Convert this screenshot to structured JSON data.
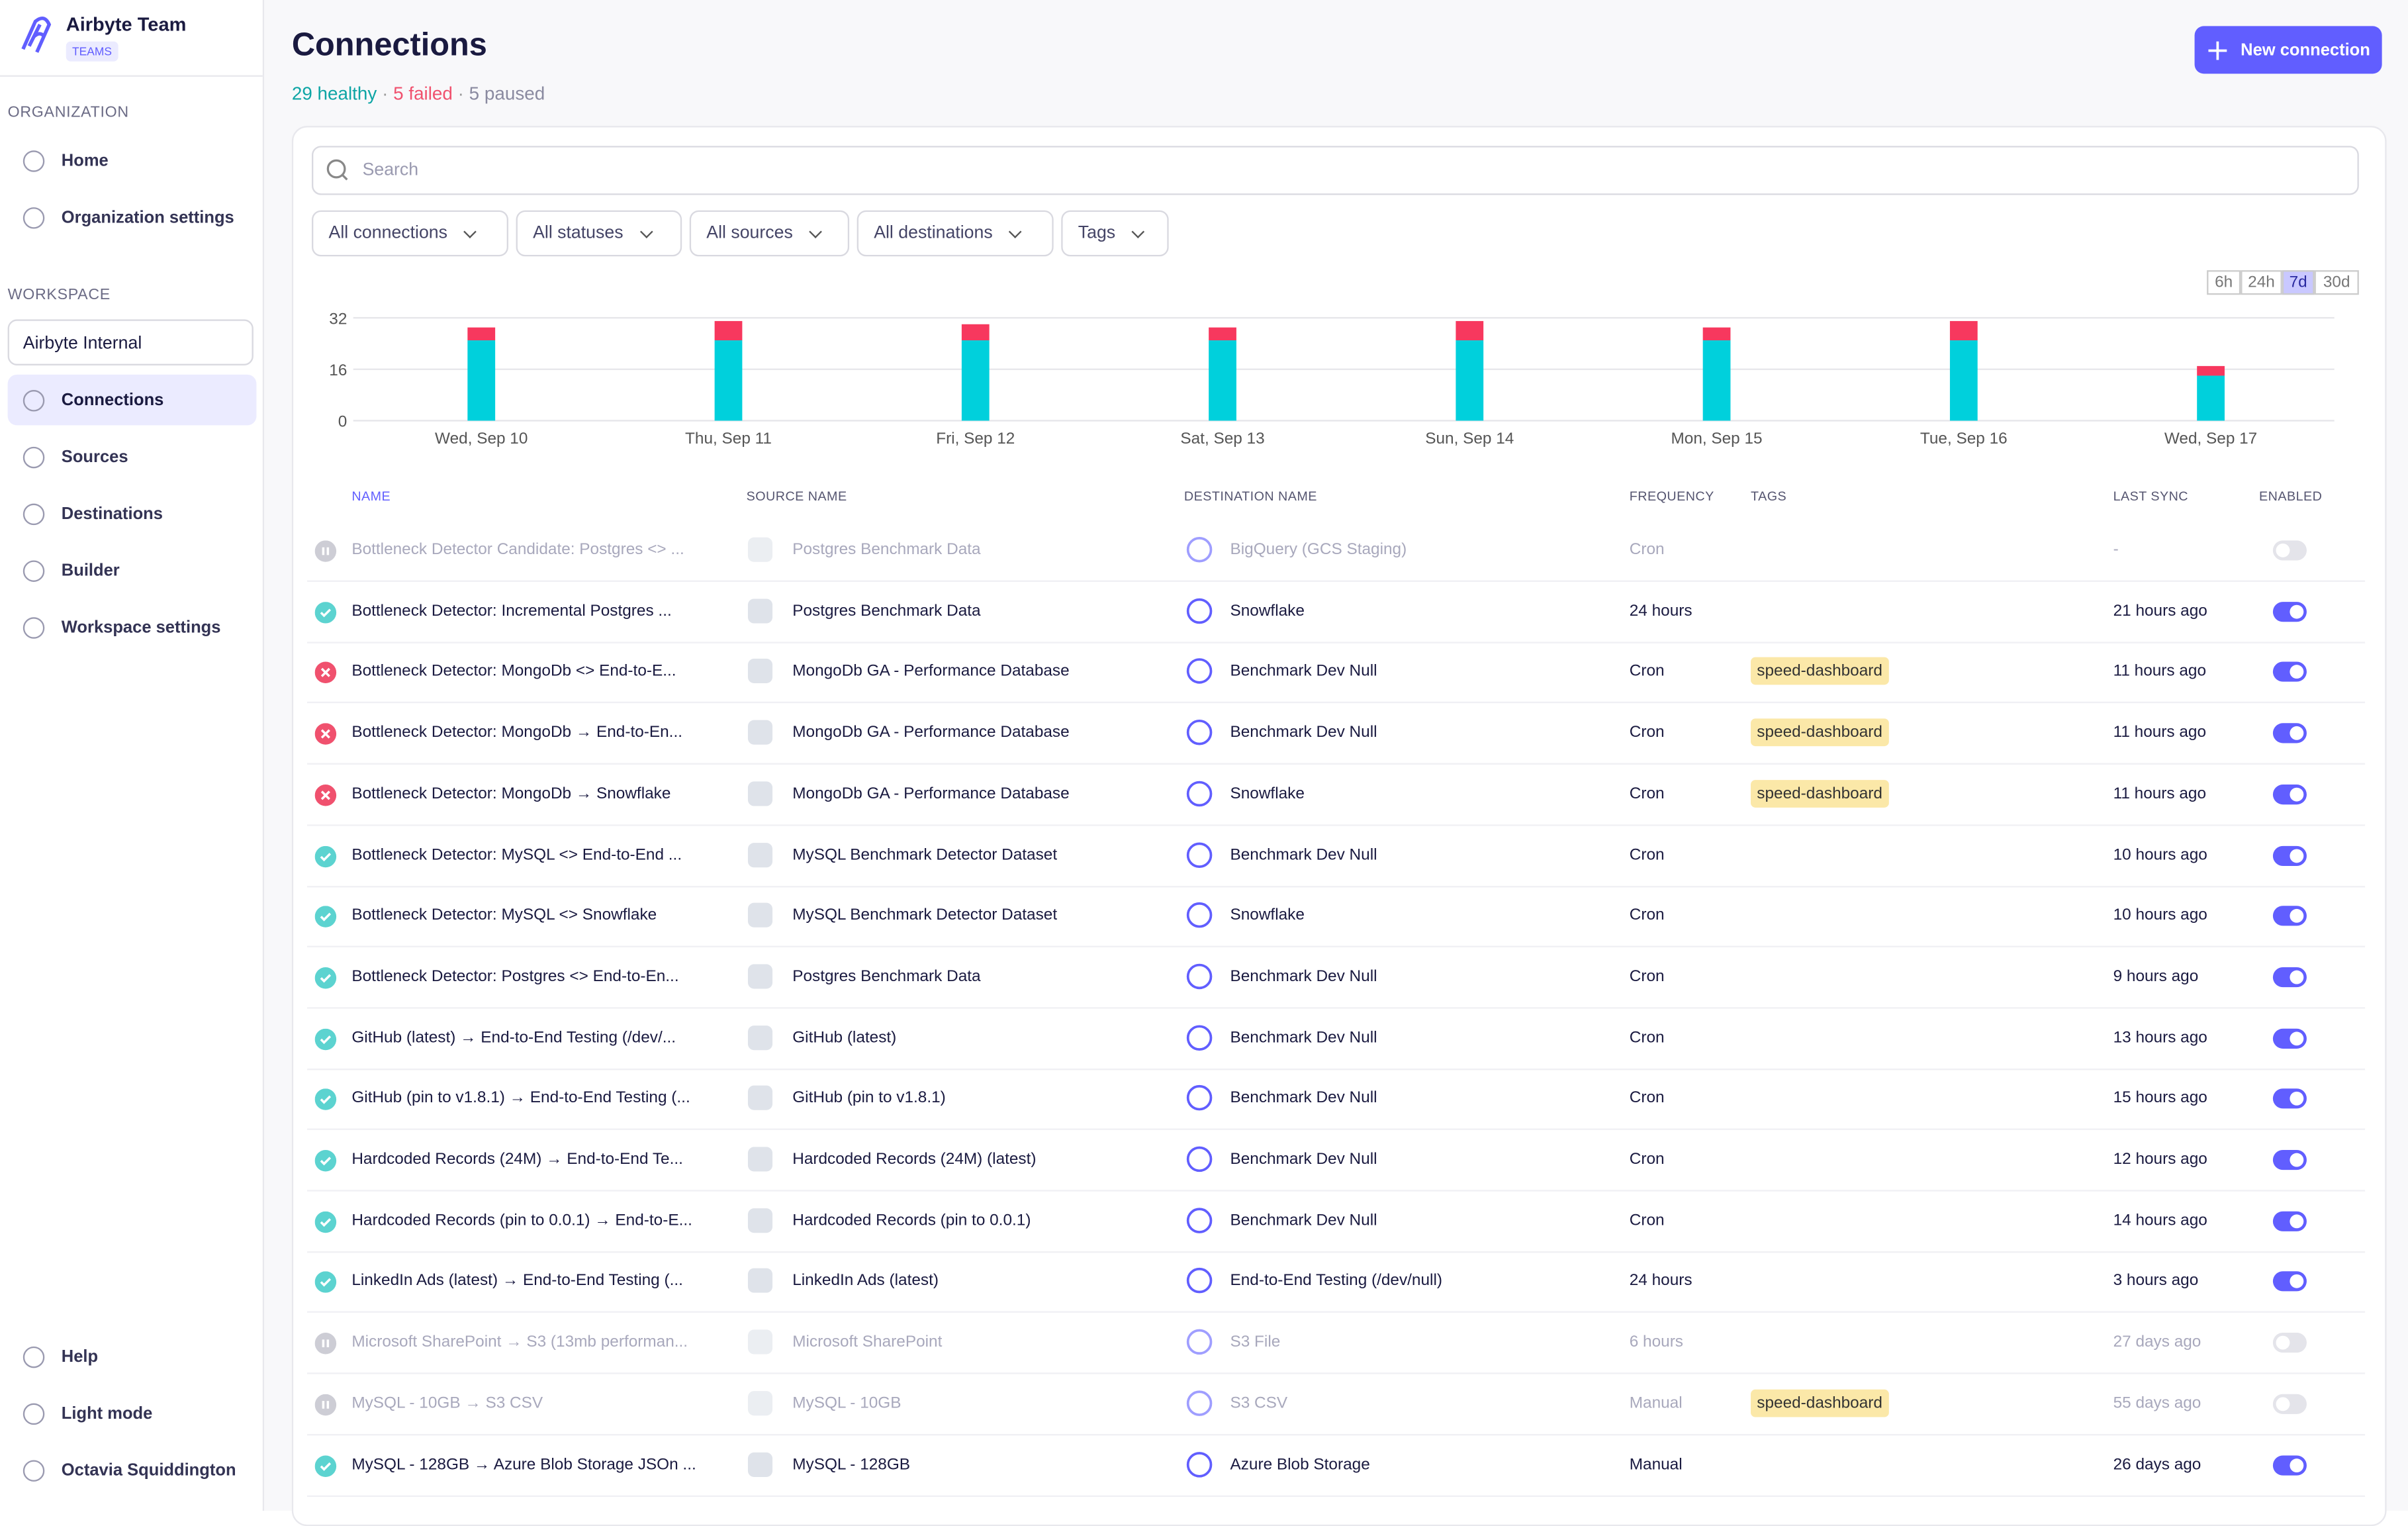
{
  "sidebar": {
    "team": "Airbyte Team",
    "team_badge": "TEAMS",
    "org_heading": "ORGANIZATION",
    "org_items": [
      "Home",
      "Organization settings"
    ],
    "workspace_heading": "WORKSPACE",
    "workspace": "Airbyte Internal",
    "workspace_items": [
      "Connections",
      "Sources",
      "Destinations",
      "Builder",
      "Workspace settings"
    ],
    "active_item": 0,
    "bottom_items": [
      "Help",
      "Light mode",
      "Octavia Squiddington"
    ]
  },
  "header": {
    "title": "Connections",
    "healthy": "29 healthy",
    "failed": "5 failed",
    "paused": "5 paused",
    "button": "New connection"
  },
  "search": {
    "placeholder": "Search"
  },
  "filters": [
    "All connections",
    "All statuses",
    "All sources",
    "All destinations",
    "Tags"
  ],
  "time_ranges": {
    "options": [
      "6h",
      "24h",
      "7d",
      "30d"
    ],
    "active": 2
  },
  "chart_data": {
    "type": "bar",
    "stacked": true,
    "categories": [
      "Wed, Sep 10",
      "Thu, Sep 11",
      "Fri, Sep 12",
      "Sat, Sep 13",
      "Sun, Sep 14",
      "Mon, Sep 15",
      "Tue, Sep 16",
      "Wed, Sep 17"
    ],
    "series": [
      {
        "color": "#00d0dc",
        "values": [
          25,
          25,
          25,
          25,
          25,
          25,
          25,
          14
        ]
      },
      {
        "color": "#f7385e",
        "values": [
          4,
          6,
          5,
          4,
          6,
          4,
          6,
          3
        ]
      }
    ],
    "ylim": [
      0,
      32
    ],
    "yticks": [
      0,
      16,
      32
    ],
    "grid": true
  },
  "table": {
    "headers": [
      "NAME",
      "SOURCE NAME",
      "DESTINATION NAME",
      "FREQUENCY",
      "TAGS",
      "LAST SYNC",
      "ENABLED"
    ],
    "rows": [
      {
        "status": "paused",
        "name": "Bottleneck Detector Candidate: Postgres <> ...",
        "source": "Postgres Benchmark Data",
        "destination": "BigQuery (GCS Staging)",
        "frequency": "Cron",
        "tags": [],
        "last_sync": "-",
        "enabled": false
      },
      {
        "status": "healthy",
        "name": "Bottleneck Detector: Incremental Postgres ...",
        "source": "Postgres Benchmark Data",
        "destination": "Snowflake",
        "frequency": "24 hours",
        "tags": [],
        "last_sync": "21 hours ago",
        "enabled": true
      },
      {
        "status": "failed",
        "name": "Bottleneck Detector: MongoDb <> End-to-E...",
        "source": "MongoDb GA - Performance Database",
        "destination": "Benchmark Dev Null",
        "frequency": "Cron",
        "tags": [
          "speed-dashboard"
        ],
        "last_sync": "11 hours ago",
        "enabled": true
      },
      {
        "status": "failed",
        "name": "Bottleneck Detector: MongoDb → End-to-En...",
        "source": "MongoDb GA - Performance Database",
        "destination": "Benchmark Dev Null",
        "frequency": "Cron",
        "tags": [
          "speed-dashboard"
        ],
        "last_sync": "11 hours ago",
        "enabled": true
      },
      {
        "status": "failed",
        "name": "Bottleneck Detector: MongoDb → Snowflake",
        "source": "MongoDb GA - Performance Database",
        "destination": "Snowflake",
        "frequency": "Cron",
        "tags": [
          "speed-dashboard"
        ],
        "last_sync": "11 hours ago",
        "enabled": true
      },
      {
        "status": "healthy",
        "name": "Bottleneck Detector: MySQL <> End-to-End ...",
        "source": "MySQL Benchmark Detector Dataset",
        "destination": "Benchmark Dev Null",
        "frequency": "Cron",
        "tags": [],
        "last_sync": "10 hours ago",
        "enabled": true
      },
      {
        "status": "healthy",
        "name": "Bottleneck Detector: MySQL <> Snowflake",
        "source": "MySQL Benchmark Detector Dataset",
        "destination": "Snowflake",
        "frequency": "Cron",
        "tags": [],
        "last_sync": "10 hours ago",
        "enabled": true
      },
      {
        "status": "healthy",
        "name": "Bottleneck Detector: Postgres <> End-to-En...",
        "source": "Postgres Benchmark Data",
        "destination": "Benchmark Dev Null",
        "frequency": "Cron",
        "tags": [],
        "last_sync": "9 hours ago",
        "enabled": true
      },
      {
        "status": "healthy",
        "name": "GitHub (latest) → End-to-End Testing (/dev/...",
        "source": "GitHub (latest)",
        "destination": "Benchmark Dev Null",
        "frequency": "Cron",
        "tags": [],
        "last_sync": "13 hours ago",
        "enabled": true
      },
      {
        "status": "healthy",
        "name": "GitHub (pin to v1.8.1) → End-to-End Testing (...",
        "source": "GitHub (pin to v1.8.1)",
        "destination": "Benchmark Dev Null",
        "frequency": "Cron",
        "tags": [],
        "last_sync": "15 hours ago",
        "enabled": true
      },
      {
        "status": "healthy",
        "name": "Hardcoded Records (24M) → End-to-End Te...",
        "source": "Hardcoded Records (24M) (latest)",
        "destination": "Benchmark Dev Null",
        "frequency": "Cron",
        "tags": [],
        "last_sync": "12 hours ago",
        "enabled": true
      },
      {
        "status": "healthy",
        "name": "Hardcoded Records (pin to 0.0.1) → End-to-E...",
        "source": "Hardcoded Records (pin to 0.0.1)",
        "destination": "Benchmark Dev Null",
        "frequency": "Cron",
        "tags": [],
        "last_sync": "14 hours ago",
        "enabled": true
      },
      {
        "status": "healthy",
        "name": "LinkedIn Ads (latest) → End-to-End Testing (...",
        "source": "LinkedIn Ads (latest)",
        "destination": "End-to-End Testing (/dev/null)",
        "frequency": "24 hours",
        "tags": [],
        "last_sync": "3 hours ago",
        "enabled": true
      },
      {
        "status": "paused",
        "name": "Microsoft SharePoint → S3 (13mb performan...",
        "source": "Microsoft SharePoint",
        "destination": "S3 File",
        "frequency": "6 hours",
        "tags": [],
        "last_sync": "27 days ago",
        "enabled": false
      },
      {
        "status": "paused",
        "name": "MySQL - 10GB → S3 CSV",
        "source": "MySQL - 10GB",
        "destination": "S3 CSV",
        "frequency": "Manual",
        "tags": [
          "speed-dashboard"
        ],
        "last_sync": "55 days ago",
        "enabled": false
      },
      {
        "status": "healthy",
        "name": "MySQL - 128GB → Azure Blob Storage JSOn ...",
        "source": "MySQL - 128GB",
        "destination": "Azure Blob Storage",
        "frequency": "Manual",
        "tags": [],
        "last_sync": "26 days ago",
        "enabled": true
      }
    ]
  }
}
